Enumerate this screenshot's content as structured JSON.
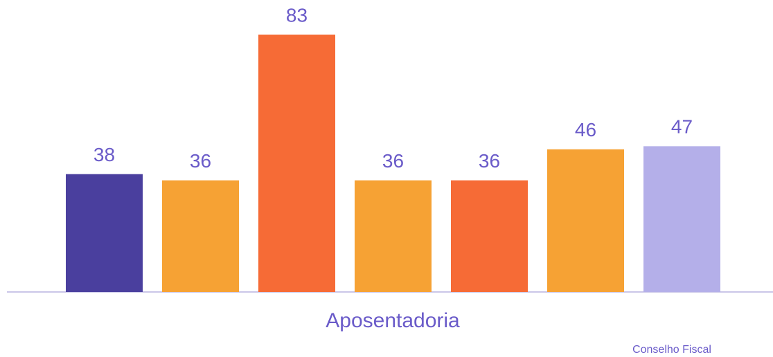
{
  "chart_data": {
    "type": "bar",
    "categories": [
      null,
      null,
      null,
      null,
      null,
      null,
      null
    ],
    "values": [
      38,
      36,
      83,
      36,
      36,
      46,
      47
    ],
    "colors": [
      "#4a3f9e",
      "#f6a234",
      "#f66b36",
      "#f6a234",
      "#f66b36",
      "#f6a234",
      "#b4afe9"
    ],
    "xlabel": "Aposentadoria",
    "footer": "Conselho Fiscal"
  }
}
